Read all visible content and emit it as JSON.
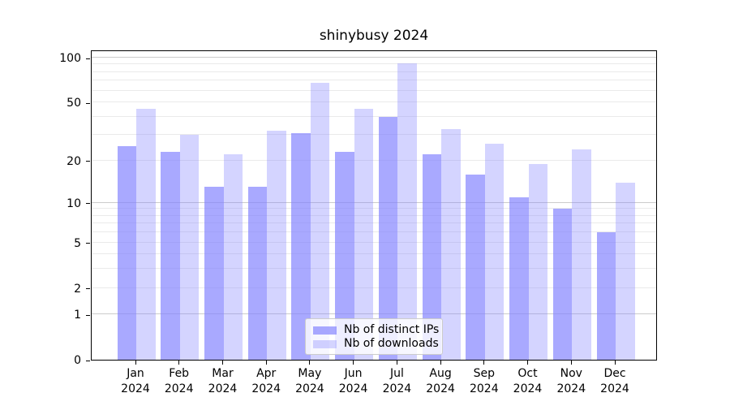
{
  "chart_data": {
    "type": "bar",
    "title": "shinybusy 2024",
    "scale": "log1p",
    "grid": true,
    "legend_position": "bottom-center",
    "ylim": [
      0,
      114
    ],
    "y_ticks": [
      0,
      1,
      2,
      5,
      10,
      20,
      50,
      100
    ],
    "major_gridlines": [
      1,
      10,
      100
    ],
    "minor_gridlines": [
      2,
      3,
      4,
      5,
      6,
      7,
      8,
      9,
      20,
      30,
      40,
      50,
      60,
      70,
      80,
      90
    ],
    "categories": [
      {
        "month": "Jan",
        "year": "2024"
      },
      {
        "month": "Feb",
        "year": "2024"
      },
      {
        "month": "Mar",
        "year": "2024"
      },
      {
        "month": "Apr",
        "year": "2024"
      },
      {
        "month": "May",
        "year": "2024"
      },
      {
        "month": "Jun",
        "year": "2024"
      },
      {
        "month": "Jul",
        "year": "2024"
      },
      {
        "month": "Aug",
        "year": "2024"
      },
      {
        "month": "Sep",
        "year": "2024"
      },
      {
        "month": "Oct",
        "year": "2024"
      },
      {
        "month": "Nov",
        "year": "2024"
      },
      {
        "month": "Dec",
        "year": "2024"
      }
    ],
    "series": [
      {
        "name": "Nb of distinct IPs",
        "color": "#8080ff",
        "alpha": 0.68,
        "values": [
          25,
          23,
          13,
          13,
          31,
          23,
          40,
          22,
          16,
          11,
          9,
          6
        ]
      },
      {
        "name": "Nb of downloads",
        "color": "#8080ff",
        "alpha": 0.34,
        "values": [
          45,
          30,
          22,
          32,
          68,
          45,
          92,
          33,
          26,
          19,
          24,
          14
        ]
      }
    ],
    "colors": {
      "major_grid": "#cccccc",
      "minor_grid": "#eaeaea",
      "axis": "#000000",
      "legend_border": "#cccccc"
    }
  }
}
